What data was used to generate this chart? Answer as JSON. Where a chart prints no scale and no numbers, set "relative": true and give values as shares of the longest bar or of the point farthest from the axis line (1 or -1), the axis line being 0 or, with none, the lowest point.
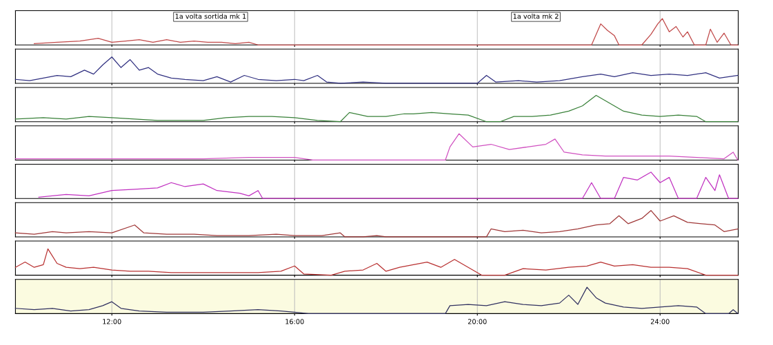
{
  "chart_data": [
    {
      "type": "line",
      "relative": true,
      "xlim": [
        9.89,
        25.71
      ],
      "xticks": [
        {
          "value": 12,
          "label": null
        },
        {
          "value": 16,
          "label": null
        },
        {
          "value": 20,
          "label": null
        },
        {
          "value": 24,
          "label": null
        }
      ],
      "tick_labels": false,
      "grid": "x",
      "annotations": [
        "1a volta sortida mk 1",
        "1a volta mk 2"
      ],
      "series": [
        {
          "color": "#c04848",
          "x": [
            10.3,
            10.8,
            11.3,
            11.7,
            12.0,
            12.3,
            12.6,
            12.9,
            13.2,
            13.5,
            13.8,
            14.1,
            14.4,
            14.7,
            15.0,
            15.2,
            15.6,
            22.5,
            22.7,
            22.85,
            23.0,
            23.1,
            23.6,
            23.8,
            23.95,
            24.05,
            24.2,
            24.35,
            24.5,
            24.6,
            24.75,
            25.0,
            25.1,
            25.25,
            25.4,
            25.55,
            25.7
          ],
          "values": [
            0.05,
            0.1,
            0.15,
            0.25,
            0.1,
            0.15,
            0.2,
            0.1,
            0.2,
            0.1,
            0.15,
            0.1,
            0.1,
            0.05,
            0.1,
            0,
            0,
            0,
            0.8,
            0.55,
            0.35,
            0,
            0,
            0.4,
            0.8,
            1.0,
            0.5,
            0.7,
            0.3,
            0.5,
            0,
            0,
            0.6,
            0.1,
            0.45,
            0,
            0
          ]
        }
      ]
    },
    {
      "type": "line",
      "relative": true,
      "xlim": [
        9.89,
        25.71
      ],
      "xticks": [
        {
          "value": 12,
          "label": null
        },
        {
          "value": 16,
          "label": null
        },
        {
          "value": 20,
          "label": null
        },
        {
          "value": 24,
          "label": null
        }
      ],
      "tick_labels": false,
      "grid": "x",
      "series": [
        {
          "color": "#303080",
          "x": [
            9.89,
            10.2,
            10.5,
            10.8,
            11.1,
            11.4,
            11.6,
            11.8,
            12.0,
            12.2,
            12.4,
            12.6,
            12.8,
            13.0,
            13.3,
            13.6,
            14.0,
            14.3,
            14.6,
            14.9,
            15.2,
            15.6,
            16.0,
            16.2,
            16.5,
            16.7,
            17.0,
            17.5,
            18.0,
            20.0,
            20.2,
            20.4,
            20.9,
            21.3,
            21.8,
            22.3,
            22.7,
            23.0,
            23.4,
            23.8,
            24.2,
            24.6,
            25.0,
            25.3,
            25.7
          ],
          "values": [
            0.15,
            0.1,
            0.2,
            0.3,
            0.25,
            0.5,
            0.35,
            0.7,
            1.0,
            0.6,
            0.9,
            0.5,
            0.6,
            0.35,
            0.2,
            0.15,
            0.1,
            0.25,
            0.05,
            0.3,
            0.15,
            0.1,
            0.15,
            0.1,
            0.3,
            0.05,
            0,
            0.05,
            0,
            0,
            0.3,
            0.05,
            0.1,
            0.05,
            0.1,
            0.25,
            0.35,
            0.25,
            0.4,
            0.3,
            0.35,
            0.3,
            0.4,
            0.2,
            0.3
          ]
        }
      ]
    },
    {
      "type": "line",
      "relative": true,
      "xlim": [
        9.89,
        25.71
      ],
      "xticks": [
        {
          "value": 12,
          "label": null
        },
        {
          "value": 16,
          "label": null
        },
        {
          "value": 20,
          "label": null
        },
        {
          "value": 24,
          "label": null
        }
      ],
      "tick_labels": false,
      "grid": "x",
      "series": [
        {
          "color": "#388038",
          "x": [
            9.89,
            10.5,
            11.0,
            11.5,
            12.0,
            12.5,
            13.0,
            13.5,
            14.0,
            14.5,
            15.0,
            15.5,
            16.0,
            16.5,
            17.0,
            17.2,
            17.6,
            18.0,
            18.4,
            18.6,
            19.0,
            19.4,
            19.8,
            20.2,
            20.5,
            20.8,
            21.2,
            21.6,
            22.0,
            22.3,
            22.6,
            22.9,
            23.2,
            23.6,
            24.0,
            24.4,
            24.8,
            25.0,
            25.7
          ],
          "values": [
            0.1,
            0.15,
            0.1,
            0.2,
            0.15,
            0.1,
            0.05,
            0.05,
            0.05,
            0.15,
            0.2,
            0.2,
            0.15,
            0.05,
            0,
            0.35,
            0.2,
            0.2,
            0.3,
            0.3,
            0.35,
            0.3,
            0.25,
            0,
            0,
            0.2,
            0.2,
            0.25,
            0.4,
            0.6,
            1.0,
            0.7,
            0.4,
            0.25,
            0.2,
            0.25,
            0.2,
            0,
            0
          ]
        }
      ]
    },
    {
      "type": "line",
      "relative": true,
      "xlim": [
        9.89,
        25.71
      ],
      "xticks": [
        {
          "value": 12,
          "label": null
        },
        {
          "value": 16,
          "label": null
        },
        {
          "value": 20,
          "label": null
        },
        {
          "value": 24,
          "label": null
        }
      ],
      "tick_labels": false,
      "grid": "x",
      "series": [
        {
          "color": "#d050c0",
          "x": [
            9.89,
            11,
            12,
            13,
            14,
            15,
            16,
            16.4,
            19.3,
            19.4,
            19.6,
            19.9,
            20.3,
            20.7,
            21.1,
            21.5,
            21.7,
            21.9,
            22.3,
            22.8,
            23.5,
            24.2,
            24.8,
            25.4,
            25.6,
            25.7
          ],
          "values": [
            0.05,
            0.05,
            0.05,
            0.05,
            0.05,
            0.1,
            0.1,
            0,
            0,
            0.5,
            1.0,
            0.5,
            0.6,
            0.4,
            0.5,
            0.6,
            0.8,
            0.3,
            0.2,
            0.15,
            0.15,
            0.15,
            0.1,
            0.05,
            0.3,
            0
          ]
        }
      ]
    },
    {
      "type": "line",
      "relative": true,
      "xlim": [
        9.89,
        25.71
      ],
      "xticks": [
        {
          "value": 12,
          "label": null
        },
        {
          "value": 16,
          "label": null
        },
        {
          "value": 20,
          "label": null
        },
        {
          "value": 24,
          "label": null
        }
      ],
      "tick_labels": false,
      "grid": "x",
      "series": [
        {
          "color": "#c030c0",
          "x": [
            10.4,
            11,
            11.5,
            12,
            12.5,
            13,
            13.3,
            13.6,
            14.0,
            14.3,
            14.8,
            15.0,
            15.2,
            15.3,
            22.0,
            22.3,
            22.5,
            22.7,
            23.0,
            23.2,
            23.5,
            23.8,
            24.0,
            24.2,
            24.4,
            24.8,
            25.0,
            25.2,
            25.3,
            25.5,
            25.7
          ],
          "values": [
            0.05,
            0.15,
            0.1,
            0.3,
            0.35,
            0.4,
            0.6,
            0.45,
            0.55,
            0.3,
            0.2,
            0.1,
            0.3,
            0,
            0,
            0,
            0.6,
            0,
            0,
            0.8,
            0.7,
            1.0,
            0.6,
            0.8,
            0,
            0,
            0.8,
            0.3,
            0.9,
            0,
            0
          ]
        }
      ]
    },
    {
      "type": "line",
      "relative": true,
      "xlim": [
        9.89,
        25.71
      ],
      "xticks": [
        {
          "value": 12,
          "label": null
        },
        {
          "value": 16,
          "label": null
        },
        {
          "value": 20,
          "label": null
        },
        {
          "value": 24,
          "label": null
        }
      ],
      "tick_labels": false,
      "grid": "x",
      "series": [
        {
          "color": "#a03838",
          "x": [
            9.89,
            10.3,
            10.7,
            11.0,
            11.5,
            12.0,
            12.5,
            12.7,
            13.2,
            13.8,
            14.3,
            15.0,
            15.6,
            16.0,
            16.6,
            17.0,
            17.1,
            17.5,
            17.8,
            18.0,
            20.2,
            20.3,
            20.6,
            21.0,
            21.4,
            21.8,
            22.2,
            22.6,
            22.9,
            23.1,
            23.3,
            23.6,
            23.8,
            24.0,
            24.3,
            24.6,
            24.9,
            25.2,
            25.4,
            25.7
          ],
          "values": [
            0.15,
            0.1,
            0.2,
            0.15,
            0.2,
            0.15,
            0.45,
            0.15,
            0.1,
            0.1,
            0.05,
            0.05,
            0.1,
            0.05,
            0.05,
            0.15,
            0,
            0,
            0.05,
            0,
            0,
            0.3,
            0.2,
            0.25,
            0.15,
            0.2,
            0.3,
            0.45,
            0.5,
            0.8,
            0.5,
            0.7,
            1.0,
            0.6,
            0.8,
            0.55,
            0.5,
            0.45,
            0.2,
            0.3
          ]
        }
      ]
    },
    {
      "type": "line",
      "relative": true,
      "xlim": [
        9.89,
        25.71
      ],
      "xticks": [
        {
          "value": 12,
          "label": null
        },
        {
          "value": 16,
          "label": null
        },
        {
          "value": 20,
          "label": null
        },
        {
          "value": 24,
          "label": null
        }
      ],
      "tick_labels": false,
      "grid": "x",
      "series": [
        {
          "color": "#b83030",
          "x": [
            9.89,
            10.1,
            10.3,
            10.5,
            10.6,
            10.8,
            11.0,
            11.3,
            11.6,
            12.0,
            12.4,
            12.8,
            13.3,
            14.0,
            14.6,
            15.2,
            15.7,
            16.0,
            16.2,
            16.8,
            17.1,
            17.5,
            17.8,
            18.0,
            18.3,
            18.6,
            18.9,
            19.2,
            19.5,
            19.8,
            20.1,
            20.6,
            21.0,
            21.5,
            22.0,
            22.4,
            22.7,
            23.0,
            23.4,
            23.8,
            24.2,
            24.6,
            25.0,
            25.7
          ],
          "values": [
            0.3,
            0.5,
            0.3,
            0.4,
            1.0,
            0.45,
            0.3,
            0.25,
            0.3,
            0.2,
            0.15,
            0.15,
            0.1,
            0.1,
            0.1,
            0.1,
            0.15,
            0.35,
            0.05,
            0,
            0.15,
            0.2,
            0.45,
            0.15,
            0.3,
            0.4,
            0.5,
            0.3,
            0.6,
            0.3,
            0,
            0,
            0.25,
            0.2,
            0.3,
            0.35,
            0.5,
            0.35,
            0.4,
            0.3,
            0.3,
            0.25,
            0,
            0
          ]
        }
      ]
    },
    {
      "type": "line",
      "relative": true,
      "xlim": [
        9.89,
        25.71
      ],
      "xticks": [
        {
          "value": 12,
          "label": "12:00"
        },
        {
          "value": 16,
          "label": "16:00"
        },
        {
          "value": 20,
          "label": "20:00"
        },
        {
          "value": 24,
          "label": "24:00"
        }
      ],
      "tick_labels": "x",
      "grid": "x",
      "series": [
        {
          "color": "#303060",
          "x": [
            9.89,
            10.3,
            10.7,
            11.1,
            11.5,
            11.8,
            12.0,
            12.2,
            12.6,
            13.2,
            14.0,
            14.6,
            15.2,
            15.7,
            16.0,
            16.3,
            19.3,
            19.4,
            19.8,
            20.2,
            20.6,
            21.0,
            21.4,
            21.8,
            22.0,
            22.2,
            22.4,
            22.6,
            22.8,
            23.2,
            23.6,
            24.0,
            24.4,
            24.8,
            25.0,
            25.5,
            25.6,
            25.7
          ],
          "values": [
            0.2,
            0.15,
            0.2,
            0.1,
            0.15,
            0.3,
            0.45,
            0.2,
            0.1,
            0.05,
            0.05,
            0.1,
            0.15,
            0.1,
            0.05,
            0,
            0,
            0.3,
            0.35,
            0.3,
            0.45,
            0.35,
            0.3,
            0.4,
            0.7,
            0.35,
            1.0,
            0.6,
            0.4,
            0.25,
            0.2,
            0.25,
            0.3,
            0.25,
            0,
            0,
            0.15,
            0
          ]
        }
      ]
    }
  ]
}
